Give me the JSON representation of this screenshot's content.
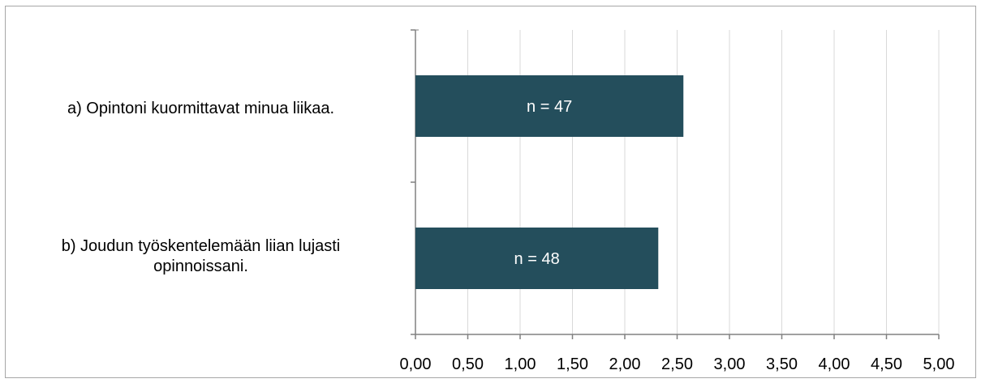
{
  "chart_data": {
    "type": "bar",
    "orientation": "horizontal",
    "categories": [
      [
        "a) Opintoni kuormittavat minua liikaa."
      ],
      [
        "b) Joudun työskentelemään  liian lujasti",
        "opinnoissani."
      ]
    ],
    "values": [
      2.56,
      2.32
    ],
    "bar_labels": [
      "n = 47",
      "n = 48"
    ],
    "xlim": [
      0,
      5
    ],
    "xticks": [
      "0,00",
      "0,50",
      "1,00",
      "1,50",
      "2,00",
      "2,50",
      "3,00",
      "3,50",
      "4,00",
      "4,50",
      "5,00"
    ],
    "grid": true,
    "colors": {
      "bar": "#244e5c",
      "bar_text": "#ffffff",
      "grid": "#d9d9d9",
      "axis": "#808080",
      "frame": "#a6a6a6"
    }
  }
}
